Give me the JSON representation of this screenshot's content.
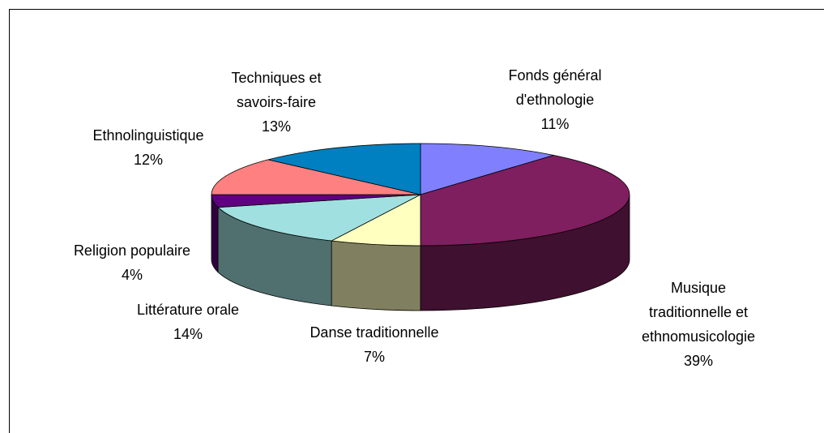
{
  "chart_data": {
    "type": "pie",
    "categories": [
      "Fonds général d'ethnologie",
      "Musique traditionnelle et ethnomusicologie",
      "Danse traditionnelle",
      "Littérature orale",
      "Religion populaire",
      "Ethnolinguistique",
      "Techniques et savoirs-faire"
    ],
    "values": [
      11,
      39,
      7,
      14,
      4,
      12,
      13
    ],
    "value_labels": [
      "11%",
      "39%",
      "7%",
      "14%",
      "4%",
      "12%",
      "13%"
    ],
    "colors": [
      "#8080ff",
      "#7f1f5f",
      "#ffffc0",
      "#a0e0e0",
      "#600080",
      "#ff8080",
      "#0080c0"
    ]
  }
}
